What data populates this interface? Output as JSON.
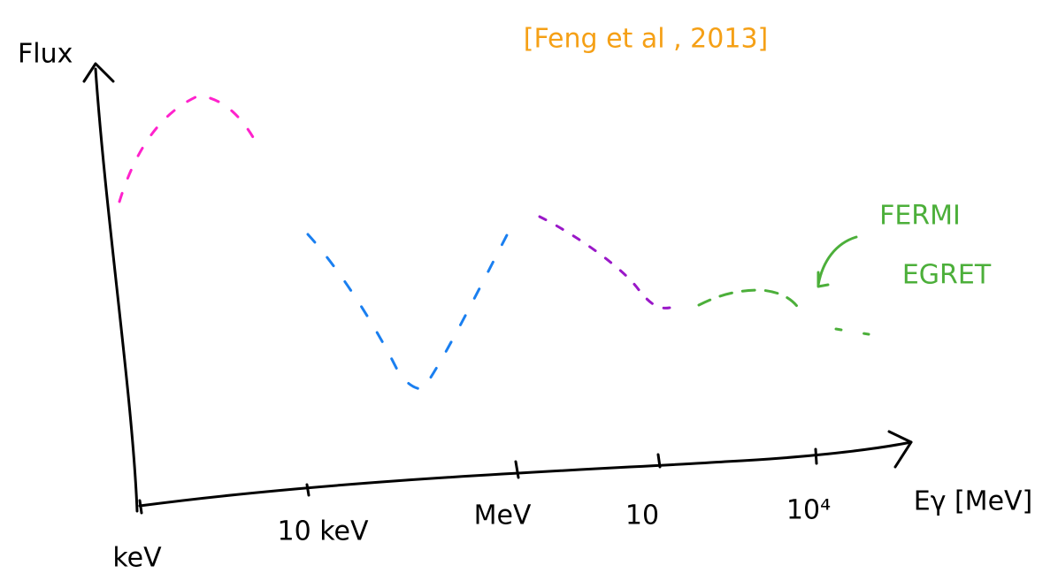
{
  "axes": {
    "y_label": "Flux",
    "x_label": "Eγ [MeV]",
    "x_ticks": [
      "keV",
      "10 keV",
      "MeV",
      "10",
      "10⁴"
    ]
  },
  "citation": "[Feng et al , 2013]",
  "annotations": [
    "FERMI",
    "EGRET"
  ]
}
